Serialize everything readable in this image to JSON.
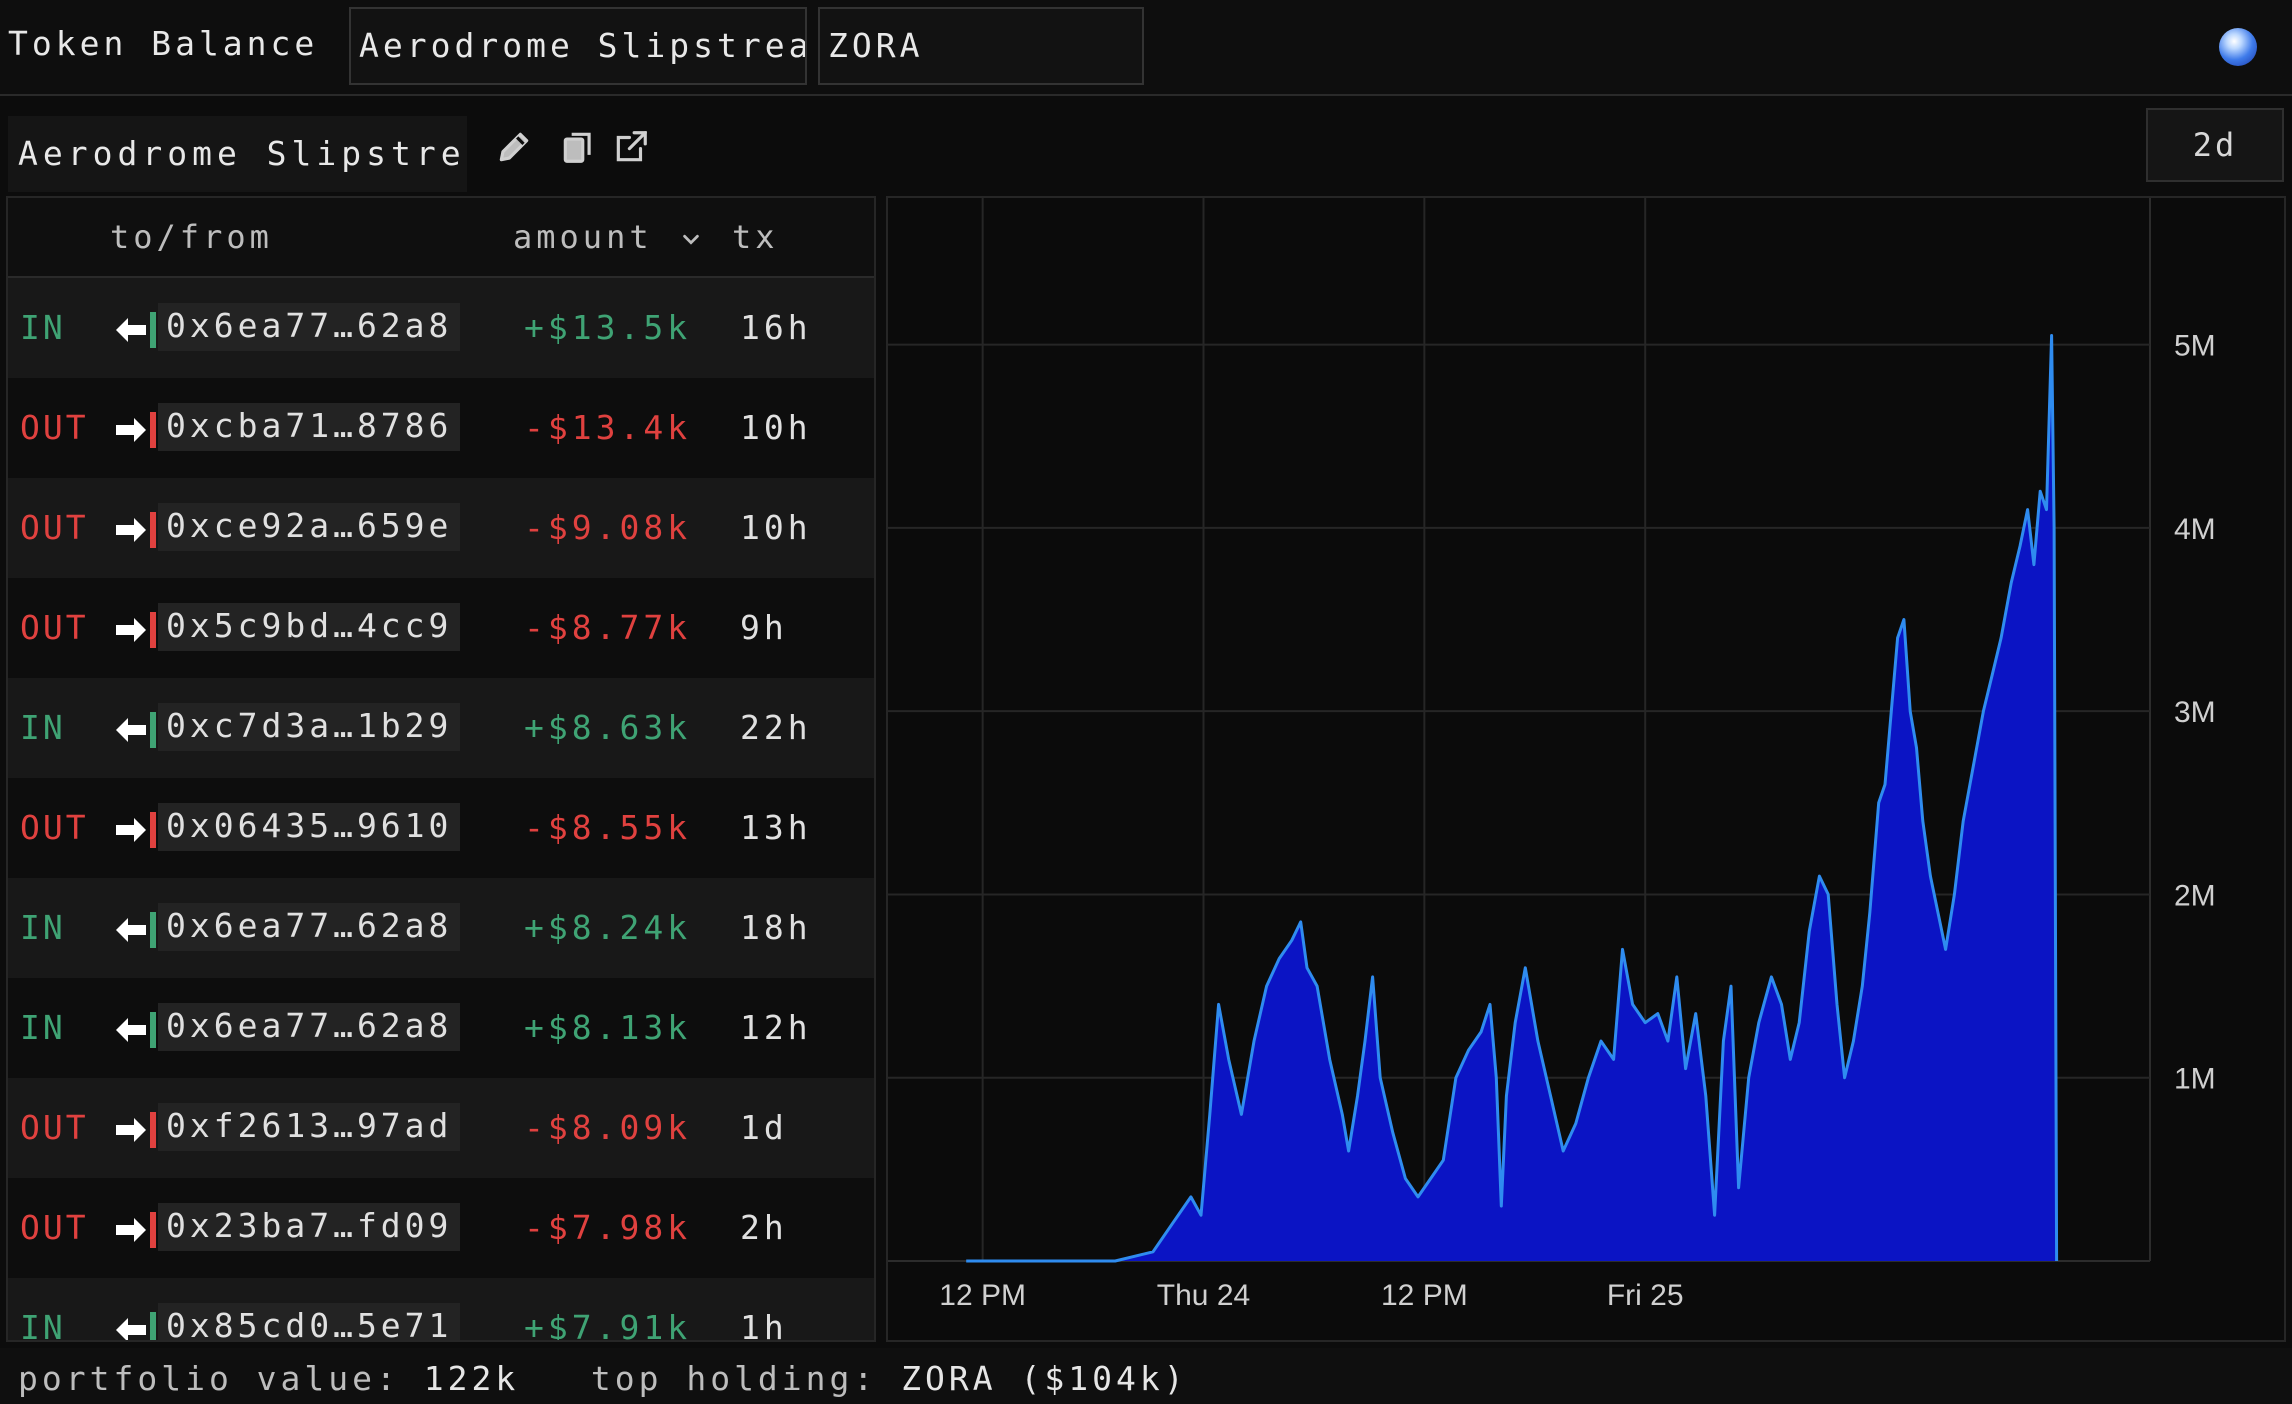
{
  "header": {
    "title": "Token Balance",
    "protocol_field": "Aerodrome Slipstream",
    "token_field": "ZORA"
  },
  "toolbar": {
    "token_name": "Aerodrome Slipstream",
    "icons": [
      "pencil-icon",
      "copy-icon",
      "external-link-icon"
    ],
    "range": "2d"
  },
  "table": {
    "headers": {
      "to_from": "to/from",
      "amount": "amount",
      "tx": "tx"
    },
    "sort_icon": "chevron-down-icon",
    "rows": [
      {
        "dir": "IN",
        "addr": "0x6ea77…62a8",
        "amount": "+$13.5k",
        "tx": "16h"
      },
      {
        "dir": "OUT",
        "addr": "0xcba71…8786",
        "amount": "-$13.4k",
        "tx": "10h"
      },
      {
        "dir": "OUT",
        "addr": "0xce92a…659e",
        "amount": "-$9.08k",
        "tx": "10h"
      },
      {
        "dir": "OUT",
        "addr": "0x5c9bd…4cc9",
        "amount": "-$8.77k",
        "tx": "9h"
      },
      {
        "dir": "IN",
        "addr": "0xc7d3a…1b29",
        "amount": "+$8.63k",
        "tx": "22h"
      },
      {
        "dir": "OUT",
        "addr": "0x06435…9610",
        "amount": "-$8.55k",
        "tx": "13h"
      },
      {
        "dir": "IN",
        "addr": "0x6ea77…62a8",
        "amount": "+$8.24k",
        "tx": "18h"
      },
      {
        "dir": "IN",
        "addr": "0x6ea77…62a8",
        "amount": "+$8.13k",
        "tx": "12h"
      },
      {
        "dir": "OUT",
        "addr": "0xf2613…97ad",
        "amount": "-$8.09k",
        "tx": "1d"
      },
      {
        "dir": "OUT",
        "addr": "0x23ba7…fd09",
        "amount": "-$7.98k",
        "tx": "2h"
      },
      {
        "dir": "IN",
        "addr": "0x85cd0…5e71",
        "amount": "+$7.91k",
        "tx": "1h"
      }
    ]
  },
  "chart_data": {
    "type": "area",
    "x_tick_labels": [
      "12 PM",
      "Thu 24",
      "12 PM",
      "Fri 25"
    ],
    "y_tick_labels": [
      "1M",
      "2M",
      "3M",
      "4M",
      "5M"
    ],
    "y_ticks": [
      1000000,
      2000000,
      3000000,
      4000000,
      5000000
    ],
    "ylim": [
      0,
      5800000
    ],
    "xlim": [
      0,
      1
    ],
    "x_tick_positions": [
      0.075,
      0.25,
      0.425,
      0.6
    ],
    "grid": true,
    "fill_color": "#0b14c4",
    "line_color": "#2f8cf0",
    "series_points": [
      [
        0.062,
        0
      ],
      [
        0.18,
        0
      ],
      [
        0.21,
        50000
      ],
      [
        0.225,
        200000
      ],
      [
        0.24,
        350000
      ],
      [
        0.248,
        250000
      ],
      [
        0.255,
        800000
      ],
      [
        0.262,
        1400000
      ],
      [
        0.27,
        1100000
      ],
      [
        0.28,
        800000
      ],
      [
        0.29,
        1200000
      ],
      [
        0.3,
        1500000
      ],
      [
        0.31,
        1650000
      ],
      [
        0.32,
        1750000
      ],
      [
        0.327,
        1850000
      ],
      [
        0.332,
        1600000
      ],
      [
        0.34,
        1500000
      ],
      [
        0.35,
        1100000
      ],
      [
        0.36,
        800000
      ],
      [
        0.365,
        600000
      ],
      [
        0.372,
        900000
      ],
      [
        0.378,
        1200000
      ],
      [
        0.384,
        1550000
      ],
      [
        0.39,
        1000000
      ],
      [
        0.4,
        700000
      ],
      [
        0.41,
        450000
      ],
      [
        0.42,
        350000
      ],
      [
        0.43,
        450000
      ],
      [
        0.44,
        550000
      ],
      [
        0.45,
        1000000
      ],
      [
        0.46,
        1150000
      ],
      [
        0.47,
        1250000
      ],
      [
        0.477,
        1400000
      ],
      [
        0.482,
        1000000
      ],
      [
        0.486,
        300000
      ],
      [
        0.49,
        900000
      ],
      [
        0.497,
        1300000
      ],
      [
        0.505,
        1600000
      ],
      [
        0.515,
        1200000
      ],
      [
        0.525,
        900000
      ],
      [
        0.535,
        600000
      ],
      [
        0.545,
        750000
      ],
      [
        0.555,
        1000000
      ],
      [
        0.565,
        1200000
      ],
      [
        0.575,
        1100000
      ],
      [
        0.582,
        1700000
      ],
      [
        0.59,
        1400000
      ],
      [
        0.6,
        1300000
      ],
      [
        0.61,
        1350000
      ],
      [
        0.618,
        1200000
      ],
      [
        0.625,
        1550000
      ],
      [
        0.632,
        1050000
      ],
      [
        0.64,
        1350000
      ],
      [
        0.648,
        900000
      ],
      [
        0.655,
        250000
      ],
      [
        0.662,
        1200000
      ],
      [
        0.668,
        1500000
      ],
      [
        0.674,
        400000
      ],
      [
        0.682,
        1000000
      ],
      [
        0.69,
        1300000
      ],
      [
        0.7,
        1550000
      ],
      [
        0.708,
        1400000
      ],
      [
        0.715,
        1100000
      ],
      [
        0.722,
        1300000
      ],
      [
        0.73,
        1800000
      ],
      [
        0.738,
        2100000
      ],
      [
        0.745,
        2000000
      ],
      [
        0.752,
        1400000
      ],
      [
        0.758,
        1000000
      ],
      [
        0.765,
        1200000
      ],
      [
        0.772,
        1500000
      ],
      [
        0.778,
        1900000
      ],
      [
        0.785,
        2500000
      ],
      [
        0.79,
        2600000
      ],
      [
        0.795,
        3000000
      ],
      [
        0.8,
        3400000
      ],
      [
        0.805,
        3500000
      ],
      [
        0.81,
        3000000
      ],
      [
        0.815,
        2800000
      ],
      [
        0.82,
        2400000
      ],
      [
        0.826,
        2100000
      ],
      [
        0.832,
        1900000
      ],
      [
        0.838,
        1700000
      ],
      [
        0.845,
        2000000
      ],
      [
        0.852,
        2400000
      ],
      [
        0.86,
        2700000
      ],
      [
        0.868,
        3000000
      ],
      [
        0.875,
        3200000
      ],
      [
        0.882,
        3400000
      ],
      [
        0.89,
        3700000
      ],
      [
        0.897,
        3900000
      ],
      [
        0.903,
        4100000
      ],
      [
        0.908,
        3800000
      ],
      [
        0.913,
        4200000
      ],
      [
        0.918,
        4100000
      ],
      [
        0.922,
        5050000
      ],
      [
        0.924,
        4000000
      ],
      [
        0.926,
        0
      ]
    ]
  },
  "footer": {
    "portfolio_label": "portfolio value:",
    "portfolio_value": "122k",
    "top_label": "top holding:",
    "top_value": "ZORA ($104k)"
  }
}
